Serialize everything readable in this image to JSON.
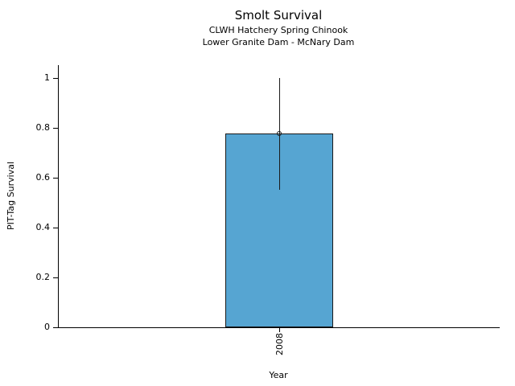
{
  "figure": {
    "background": "#ffffff"
  },
  "chart_data": {
    "type": "bar",
    "title": "Smolt Survival",
    "subtitles": [
      "CLWH Hatchery Spring Chinook",
      "Lower Granite Dam - McNary Dam"
    ],
    "xlabel": "Year",
    "ylabel": "PIT-Tag Survival",
    "categories": [
      "2008"
    ],
    "values": [
      0.775
    ],
    "error_low": [
      0.55
    ],
    "error_high": [
      1.0
    ],
    "markers": [
      0.775
    ],
    "ylim": [
      0,
      1.05
    ],
    "yticks": [
      0,
      0.2,
      0.4,
      0.6,
      0.8,
      1
    ],
    "ytick_labels": [
      "0",
      "0.2",
      "0.4",
      "0.6",
      "0.8",
      "1"
    ],
    "grid": false,
    "legend": false,
    "bar_color": "#56a5d2",
    "bar_edge_color": "#1a1a1a",
    "error_color": "#1a1a1a",
    "axis_color": "#000000"
  }
}
